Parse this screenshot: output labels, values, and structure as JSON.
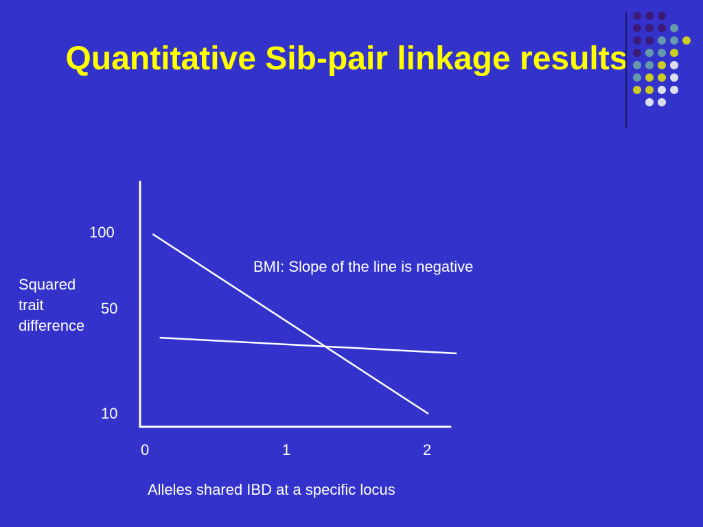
{
  "slide": {
    "title": "Quantitative Sib-pair linkage results",
    "background": "#3333cc",
    "title_color": "#ffff00"
  },
  "decoration": {
    "dot_colors": {
      "purple": "#3d1a78",
      "teal": "#6699aa",
      "yellow": "#cccc22",
      "lavender": "#ddddee"
    },
    "dot_rows": [
      [
        "purple",
        "purple",
        "purple"
      ],
      [
        "purple",
        "purple",
        "purple",
        "teal"
      ],
      [
        "purple",
        "purple",
        "teal",
        "teal",
        "yellow"
      ],
      [
        "purple",
        "teal",
        "teal",
        "yellow"
      ],
      [
        "teal",
        "teal",
        "yellow",
        "lavender"
      ],
      [
        "teal",
        "yellow",
        "yellow",
        "lavender"
      ],
      [
        "yellow",
        "yellow",
        "lavender",
        "lavender"
      ],
      [
        "lavender",
        "lavender"
      ]
    ]
  },
  "chart_data": {
    "type": "line",
    "title": "",
    "xlabel": "Alleles shared IBD at a specific locus",
    "ylabel": "Squared trait difference",
    "x_ticks": [
      "0",
      "1",
      "2"
    ],
    "y_ticks": [
      "100",
      "50",
      "10"
    ],
    "annotation": "BMI: Slope of the line is negative",
    "axis_color": "#ffffff",
    "series": [
      {
        "x": [
          0.05,
          2.0
        ],
        "y": [
          100,
          10
        ]
      },
      {
        "x": [
          0.1,
          2.2
        ],
        "y": [
          39,
          33
        ]
      }
    ]
  }
}
